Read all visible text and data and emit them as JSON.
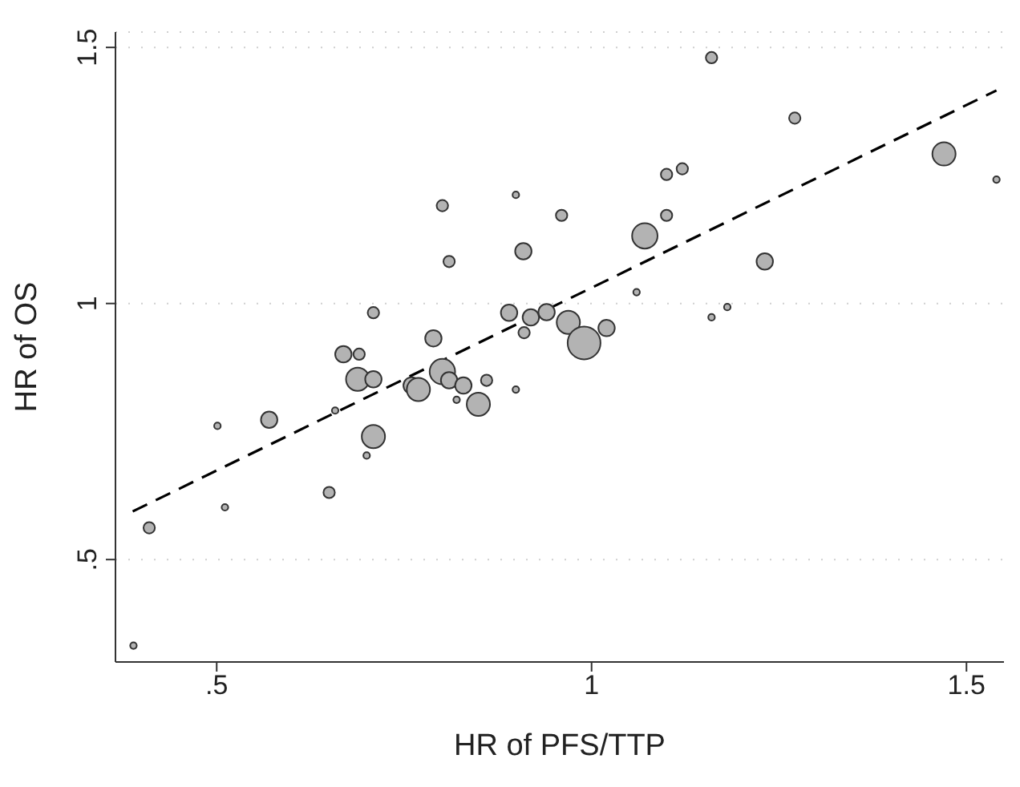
{
  "chart_data": {
    "type": "bubble",
    "xlabel": "HR of PFS/TTP",
    "ylabel": "HR of OS",
    "xlim": [
      0.365,
      1.55
    ],
    "ylim": [
      0.3,
      1.53
    ],
    "xticks": [
      {
        "value": 0.5,
        "label": ".5"
      },
      1,
      1.5
    ],
    "yticks": [
      {
        "value": 0.5,
        "label": ".5"
      },
      1,
      1.5
    ],
    "grid": "y",
    "legend": false,
    "marker": "circle",
    "series": [
      {
        "color": "#b3b3b3",
        "x": [
          0.389,
          0.41,
          0.501,
          0.511,
          0.57,
          0.65,
          0.658,
          0.7,
          0.709,
          0.688,
          0.709,
          0.76,
          0.769,
          0.801,
          0.81,
          0.829,
          0.82,
          0.849,
          0.86,
          0.899,
          0.709,
          0.669,
          0.69,
          0.789,
          0.801,
          0.81,
          0.899,
          0.909,
          0.89,
          0.91,
          1.16,
          1.271,
          1.47,
          1.54,
          0.96,
          1.1,
          1.121,
          1.1,
          1.071,
          1.231,
          1.06,
          0.919,
          0.94,
          0.969,
          0.99,
          1.02,
          1.16,
          1.181
        ],
        "values": [
          0.332,
          0.562,
          0.761,
          0.602,
          0.773,
          0.631,
          0.791,
          0.703,
          0.74,
          0.852,
          0.852,
          0.84,
          0.832,
          0.867,
          0.85,
          0.84,
          0.812,
          0.803,
          0.85,
          0.832,
          0.982,
          0.901,
          0.901,
          0.932,
          1.191,
          1.082,
          1.212,
          1.102,
          0.982,
          0.943,
          1.48,
          1.362,
          1.292,
          1.242,
          1.172,
          1.252,
          1.263,
          1.172,
          1.132,
          1.082,
          1.022,
          0.973,
          0.983,
          0.963,
          0.923,
          0.952,
          0.973,
          0.993
        ],
        "sizes": [
          0.04,
          0.12,
          0.04,
          0.04,
          0.25,
          0.12,
          0.04,
          0.04,
          0.5,
          0.5,
          0.25,
          0.25,
          0.5,
          0.6,
          0.25,
          0.25,
          0.04,
          0.5,
          0.12,
          0.04,
          0.12,
          0.25,
          0.12,
          0.25,
          0.12,
          0.12,
          0.04,
          0.25,
          0.25,
          0.12,
          0.12,
          0.12,
          0.5,
          0.04,
          0.12,
          0.12,
          0.12,
          0.12,
          0.6,
          0.25,
          0.04,
          0.25,
          0.25,
          0.5,
          1,
          0.25,
          0.04,
          0.04
        ]
      },
      {
        "type": "line",
        "color": "#000000",
        "line_style": "dashed",
        "marker": "none",
        "x": [
          0.388,
          1.54
        ],
        "values": [
          0.594,
          1.416
        ]
      }
    ]
  }
}
